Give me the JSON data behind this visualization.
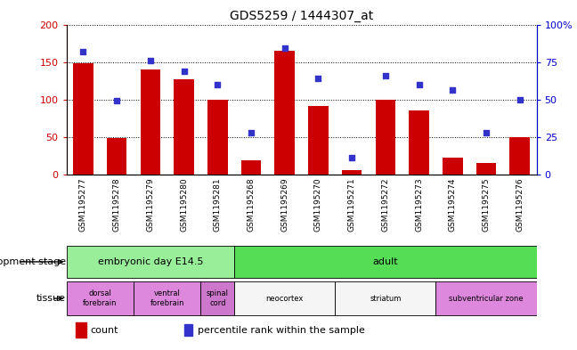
{
  "title": "GDS5259 / 1444307_at",
  "samples": [
    "GSM1195277",
    "GSM1195278",
    "GSM1195279",
    "GSM1195280",
    "GSM1195281",
    "GSM1195268",
    "GSM1195269",
    "GSM1195270",
    "GSM1195271",
    "GSM1195272",
    "GSM1195273",
    "GSM1195274",
    "GSM1195275",
    "GSM1195276"
  ],
  "count_values": [
    148,
    48,
    140,
    127,
    100,
    18,
    165,
    91,
    5,
    99,
    85,
    22,
    15,
    50
  ],
  "percentile_values": [
    82,
    49,
    76,
    69,
    60,
    28,
    84,
    64,
    11,
    66,
    60,
    56,
    28,
    50
  ],
  "ylim_left": [
    0,
    200
  ],
  "ylim_right": [
    0,
    100
  ],
  "yticks_left": [
    0,
    50,
    100,
    150,
    200
  ],
  "yticks_right": [
    0,
    25,
    50,
    75,
    100
  ],
  "ytick_labels_right": [
    "0",
    "25",
    "50",
    "75",
    "100%"
  ],
  "bar_color": "#cc0000",
  "dot_color": "#3333cc",
  "development_stages": [
    {
      "label": "embryonic day E14.5",
      "start": 0,
      "end": 5,
      "color": "#99ee99"
    },
    {
      "label": "adult",
      "start": 5,
      "end": 14,
      "color": "#55dd55"
    }
  ],
  "tissues": [
    {
      "label": "dorsal\nforebrain",
      "start": 0,
      "end": 2,
      "color": "#dd88dd"
    },
    {
      "label": "ventral\nforebrain",
      "start": 2,
      "end": 4,
      "color": "#dd88dd"
    },
    {
      "label": "spinal\ncord",
      "start": 4,
      "end": 5,
      "color": "#cc77cc"
    },
    {
      "label": "neocortex",
      "start": 5,
      "end": 8,
      "color": "#f5f5f5"
    },
    {
      "label": "striatum",
      "start": 8,
      "end": 11,
      "color": "#f5f5f5"
    },
    {
      "label": "subventricular zone",
      "start": 11,
      "end": 14,
      "color": "#dd88dd"
    }
  ],
  "bg_color": "#ffffff",
  "axis_color_left": "#cc0000",
  "axis_color_right": "#0000cc"
}
